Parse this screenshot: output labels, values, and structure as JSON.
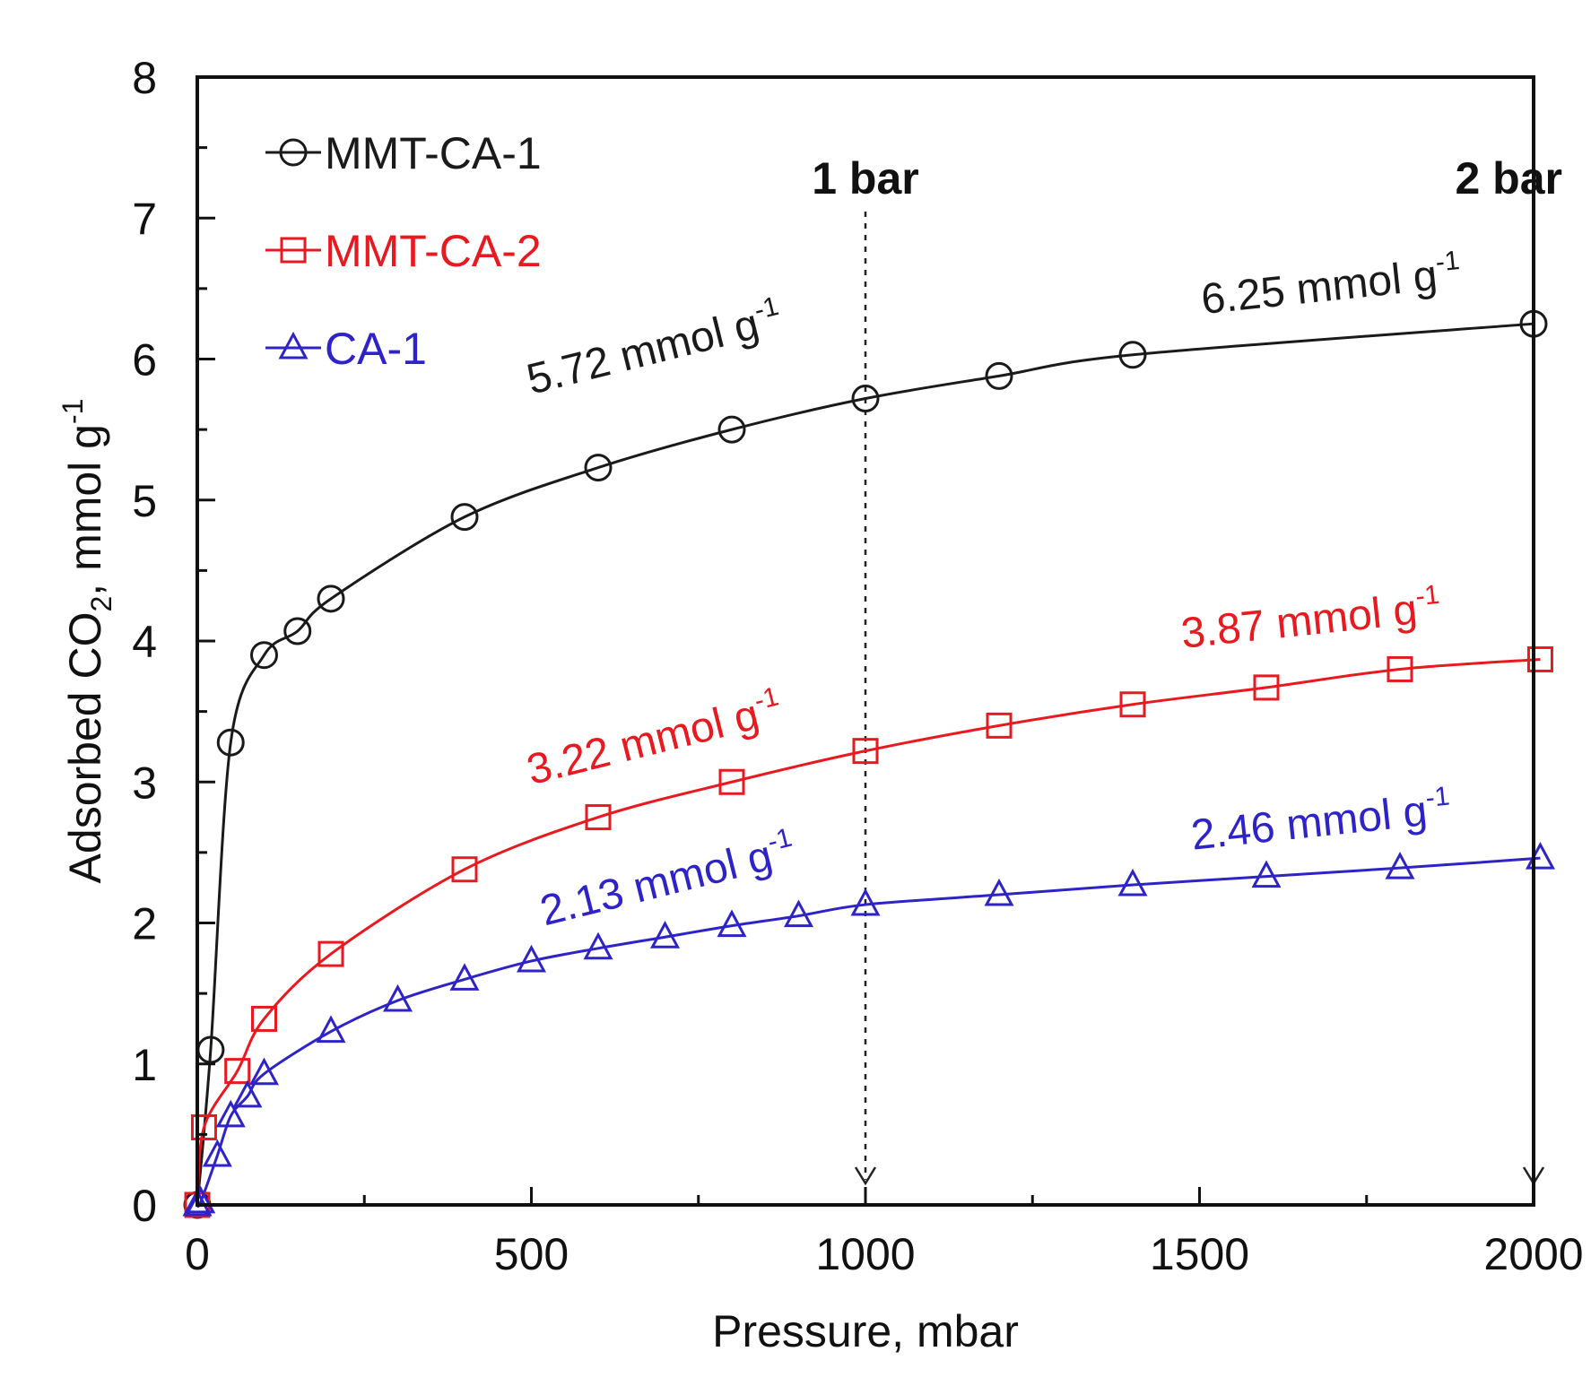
{
  "chart_data": {
    "type": "scatter",
    "xlabel": "Pressure, mbar",
    "ylabel": {
      "main": "Adsorbed CO",
      "sub": "2",
      "rest": ", mmol g",
      "sup": "-1"
    },
    "xlim": [
      0,
      2000
    ],
    "ylim": [
      0,
      8
    ],
    "xticks": [
      "0",
      "500",
      "1000",
      "1500",
      "2000"
    ],
    "yticks": [
      "0",
      "1",
      "2",
      "3",
      "4",
      "5",
      "6",
      "7",
      "8"
    ],
    "legend_position": "top-left",
    "reference_lines": [
      {
        "x": 1000,
        "label": "1 bar"
      },
      {
        "x": 2000,
        "label": "2 bar"
      }
    ],
    "series": [
      {
        "name": "MMT-CA-1",
        "color": "#1a1a1a",
        "marker": "circle",
        "x": [
          0,
          20,
          50,
          100,
          150,
          200,
          400,
          600,
          800,
          1000,
          1200,
          1400,
          2000
        ],
        "y": [
          0,
          1.1,
          3.28,
          3.9,
          4.07,
          4.3,
          4.88,
          5.23,
          5.5,
          5.72,
          5.88,
          6.03,
          6.25
        ]
      },
      {
        "name": "MMT-CA-2",
        "color": "#e8191f",
        "marker": "square",
        "x": [
          0,
          10,
          60,
          100,
          200,
          400,
          600,
          800,
          1000,
          1200,
          1400,
          1600,
          1800,
          2010
        ],
        "y": [
          0,
          0.55,
          0.95,
          1.32,
          1.78,
          2.38,
          2.75,
          3.0,
          3.22,
          3.4,
          3.55,
          3.67,
          3.8,
          3.87
        ]
      },
      {
        "name": "CA-1",
        "color": "#2d23c8",
        "marker": "triangle",
        "x": [
          0,
          5,
          30,
          50,
          75,
          100,
          200,
          300,
          400,
          500,
          600,
          700,
          800,
          900,
          1000,
          1200,
          1400,
          1600,
          1800,
          2010
        ],
        "y": [
          0,
          0.02,
          0.35,
          0.63,
          0.77,
          0.93,
          1.23,
          1.45,
          1.6,
          1.73,
          1.82,
          1.9,
          1.98,
          2.05,
          2.13,
          2.2,
          2.27,
          2.33,
          2.39,
          2.46
        ]
      }
    ],
    "annotations": [
      {
        "series": 0,
        "text": "5.72 mmol g",
        "sup": "-1",
        "x": 500,
        "y": 5.75,
        "angle": -14
      },
      {
        "series": 0,
        "text": "6.25 mmol g",
        "sup": "-1",
        "x": 1505,
        "y": 6.32,
        "angle": -6
      },
      {
        "series": 1,
        "text": "3.22 mmol g",
        "sup": "-1",
        "x": 500,
        "y": 2.98,
        "angle": -14
      },
      {
        "series": 1,
        "text": "3.87 mmol g",
        "sup": "-1",
        "x": 1475,
        "y": 3.95,
        "angle": -6
      },
      {
        "series": 2,
        "text": "2.13 mmol g",
        "sup": "-1",
        "x": 520,
        "y": 1.98,
        "angle": -14
      },
      {
        "series": 2,
        "text": "2.46 mmol g",
        "sup": "-1",
        "x": 1490,
        "y": 2.52,
        "angle": -6
      }
    ]
  }
}
